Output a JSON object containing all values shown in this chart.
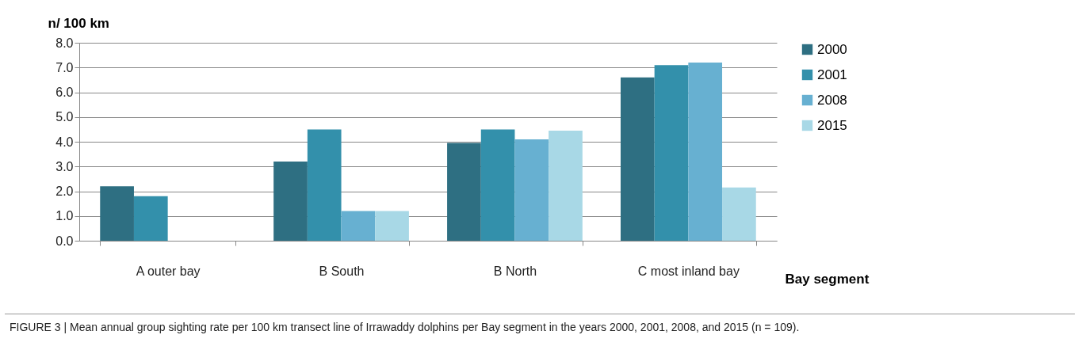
{
  "chart_data": {
    "type": "bar",
    "ylabel": "n/ 100 km",
    "xlabel": "Bay segment",
    "categories": [
      "A outer bay",
      "B South",
      "B North",
      "C most inland bay"
    ],
    "series": [
      {
        "name": "2000",
        "color": "#2e6f82",
        "values": [
          2.2,
          3.2,
          3.95,
          6.6
        ]
      },
      {
        "name": "2001",
        "color": "#3390ab",
        "values": [
          1.8,
          4.5,
          4.5,
          7.1
        ]
      },
      {
        "name": "2008",
        "color": "#67b0d1",
        "values": [
          0,
          1.2,
          4.1,
          7.2
        ]
      },
      {
        "name": "2015",
        "color": "#a8d8e6",
        "values": [
          0,
          1.2,
          4.45,
          2.15
        ]
      }
    ],
    "ylim": [
      0,
      8
    ],
    "yticks": [
      {
        "value": 0,
        "label": "0.0"
      },
      {
        "value": 1,
        "label": "1.0"
      },
      {
        "value": 2,
        "label": "2.0"
      },
      {
        "value": 3,
        "label": "3.0"
      },
      {
        "value": 4,
        "label": "4.0"
      },
      {
        "value": 5,
        "label": "5.0"
      },
      {
        "value": 6,
        "label": "6.0"
      },
      {
        "value": 7,
        "label": "7.0"
      },
      {
        "value": 8,
        "label": "8.0"
      }
    ],
    "grid": "y",
    "legend": "right",
    "annotations": [
      "FIGURE 3 | Mean annual group sighting rate per 100 km transect line of Irrawaddy dolphins per Bay segment in the years 2000, 2001, 2008, and 2015 (n = 109)."
    ]
  }
}
